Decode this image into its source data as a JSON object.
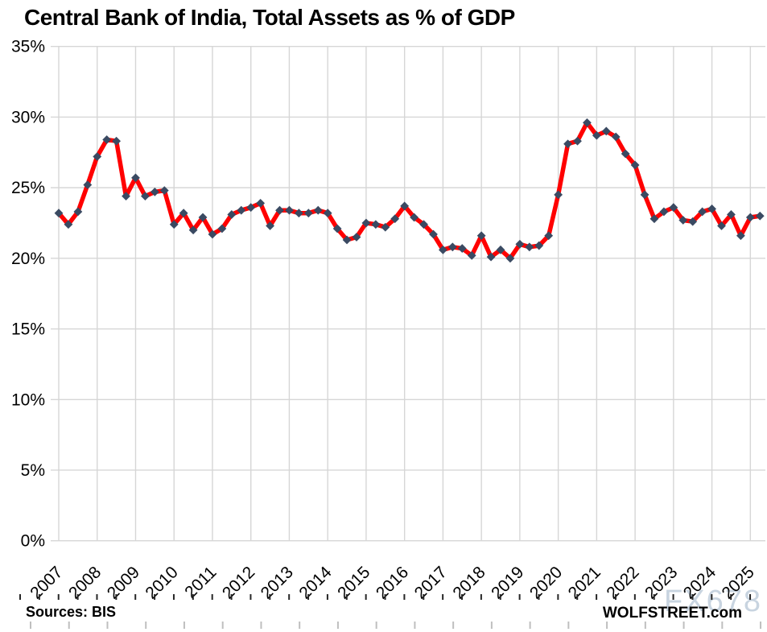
{
  "page": {
    "title": "Central Bank of India, Total Assets as % of GDP",
    "source_label": "Sources: BIS",
    "brand_label": "WOLFSTREET.com",
    "watermark": "FX678"
  },
  "chart_data": {
    "type": "line",
    "title": "Central Bank of India, Total Assets as % of GDP",
    "frequency": "quarterly",
    "start_period": "2007-Q1",
    "end_period": "2025-Q2",
    "x_tick_labels": [
      "2007",
      "2008",
      "2009",
      "2010",
      "2011",
      "2012",
      "2013",
      "2014",
      "2015",
      "2016",
      "2017",
      "2018",
      "2019",
      "2020",
      "2021",
      "2022",
      "2023",
      "2024",
      "2025"
    ],
    "ytick_labels": [
      "0%",
      "5%",
      "10%",
      "15%",
      "20%",
      "25%",
      "30%",
      "35%"
    ],
    "ylim": [
      0,
      35
    ],
    "ytick_step": 5,
    "grid": true,
    "legend": false,
    "line_color": "#FF0000",
    "marker_color": "#3A4A62",
    "grid_color": "#D6D6D6",
    "axis_tick_color": "#262626",
    "minor_tick_color": "#BFBFBF",
    "series": [
      {
        "name": "Total assets as % of GDP",
        "values": [
          23.2,
          22.4,
          23.3,
          25.2,
          27.2,
          28.4,
          28.3,
          24.4,
          25.7,
          24.4,
          24.7,
          24.8,
          22.4,
          23.2,
          22.0,
          22.9,
          21.7,
          22.1,
          23.1,
          23.4,
          23.6,
          23.9,
          22.3,
          23.4,
          23.4,
          23.2,
          23.2,
          23.4,
          23.2,
          22.1,
          21.3,
          21.5,
          22.5,
          22.4,
          22.2,
          22.8,
          23.7,
          22.9,
          22.4,
          21.7,
          20.6,
          20.8,
          20.7,
          20.2,
          21.6,
          20.1,
          20.6,
          20.0,
          21.0,
          20.8,
          20.9,
          21.6,
          24.5,
          28.1,
          28.3,
          29.6,
          28.7,
          29.0,
          28.6,
          27.4,
          26.6,
          24.5,
          22.8,
          23.3,
          23.6,
          22.7,
          22.6,
          23.3,
          23.5,
          22.3,
          23.1,
          21.6,
          22.9,
          23.0
        ]
      }
    ]
  }
}
